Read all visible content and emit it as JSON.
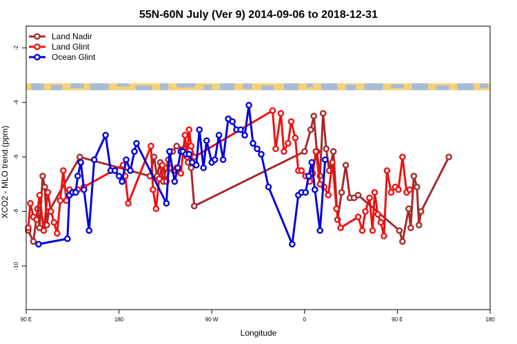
{
  "chart_data": {
    "type": "line",
    "title": "55N-60N July (Ver 9)   2014-09-06 to 2018-12-31",
    "xlabel": "Longitude",
    "ylabel": "XCO2 - MLO trend (ppm)",
    "x_ticks": [
      {
        "value": 90,
        "label": "90 E"
      },
      {
        "value": 180,
        "label": "180"
      },
      {
        "value": 270,
        "label": "90 W"
      },
      {
        "value": 360,
        "label": "0"
      },
      {
        "value": 450,
        "label": "90 E"
      },
      {
        "value": 540,
        "label": "180"
      }
    ],
    "y_ticks": [
      {
        "value": -2,
        "label": "-2"
      },
      {
        "value": -4,
        "label": "-4"
      },
      {
        "value": -6,
        "label": "-6"
      },
      {
        "value": -8,
        "label": "-8"
      },
      {
        "value": -10,
        "label": "-10"
      }
    ],
    "xlim": [
      90,
      540
    ],
    "ylim": [
      -11.6,
      -1.2
    ],
    "grid": false,
    "legend_position": "top-left",
    "land_mask": {
      "y_range": [
        -3.55,
        -3.3
      ],
      "land_color": "#f5d277",
      "ocean_color": "#a9bcd6"
    },
    "series": [
      {
        "name": "Land Nadir",
        "color": "#a52a2a",
        "points": [
          [
            92,
            -8.7
          ],
          [
            97,
            -9.1
          ],
          [
            101,
            -7.9
          ],
          [
            103,
            -8.6
          ],
          [
            106,
            -6.7
          ],
          [
            108,
            -7.1
          ],
          [
            110,
            -8.5
          ],
          [
            112,
            -8.0
          ],
          [
            142,
            -6.0
          ],
          [
            210,
            -6.7
          ],
          [
            214,
            -6.0
          ],
          [
            217,
            -6.7
          ],
          [
            220,
            -6.2
          ],
          [
            223,
            -6.9
          ],
          [
            226,
            -6.4
          ],
          [
            228,
            -6.1
          ],
          [
            232,
            -5.8
          ],
          [
            236,
            -5.6
          ],
          [
            243,
            -5.7
          ],
          [
            247,
            -6.2
          ],
          [
            250,
            -6.4
          ],
          [
            253,
            -7.8
          ],
          [
            360,
            -5.8
          ],
          [
            366,
            -5.0
          ],
          [
            369,
            -4.5
          ],
          [
            372,
            -5.8
          ],
          [
            375,
            -6.7
          ],
          [
            378,
            -4.4
          ],
          [
            381,
            -5.7
          ],
          [
            384,
            -6.5
          ],
          [
            388,
            -5.8
          ],
          [
            392,
            -8.3
          ],
          [
            396,
            -7.3
          ],
          [
            400,
            -6.3
          ],
          [
            404,
            -7.5
          ],
          [
            408,
            -7.5
          ],
          [
            412,
            -7.4
          ],
          [
            452,
            -8.7
          ],
          [
            455,
            -9.1
          ],
          [
            461,
            -7.9
          ],
          [
            463,
            -8.6
          ],
          [
            466,
            -6.7
          ],
          [
            469,
            -7.1
          ],
          [
            471,
            -8.5
          ],
          [
            473,
            -8.0
          ],
          [
            500,
            -6.0
          ]
        ]
      },
      {
        "name": "Land Glint",
        "color": "#ee1111",
        "points": [
          [
            92,
            -8.6
          ],
          [
            94,
            -7.7
          ],
          [
            97,
            -8.2
          ],
          [
            100,
            -8.3
          ],
          [
            103,
            -7.4
          ],
          [
            107,
            -8.7
          ],
          [
            111,
            -7.3
          ],
          [
            114,
            -8.0
          ],
          [
            117,
            -8.4
          ],
          [
            120,
            -8.8
          ],
          [
            123,
            -7.6
          ],
          [
            126,
            -6.5
          ],
          [
            129,
            -7.6
          ],
          [
            132,
            -7.2
          ],
          [
            136,
            -7.3
          ],
          [
            140,
            -7.2
          ],
          [
            146,
            -7.1
          ],
          [
            184,
            -6.3
          ],
          [
            186,
            -6.7
          ],
          [
            189,
            -7.7
          ],
          [
            211,
            -5.6
          ],
          [
            213,
            -7.2
          ],
          [
            216,
            -7.9
          ],
          [
            219,
            -6.8
          ],
          [
            222,
            -6.3
          ],
          [
            226,
            -6.9
          ],
          [
            229,
            -6.4
          ],
          [
            233,
            -6.5
          ],
          [
            236,
            -6.4
          ],
          [
            240,
            -6.6
          ],
          [
            244,
            -5.2
          ],
          [
            246,
            -6.0
          ],
          [
            248,
            -5.0
          ],
          [
            250,
            -5.6
          ],
          [
            253,
            -6.0
          ],
          [
            329,
            -4.3
          ],
          [
            332,
            -5.7
          ],
          [
            337,
            -4.4
          ],
          [
            340,
            -5.8
          ],
          [
            344,
            -5.5
          ],
          [
            347,
            -4.7
          ],
          [
            351,
            -5.3
          ],
          [
            354,
            -6.5
          ],
          [
            357,
            -6.5
          ],
          [
            361,
            -6.7
          ],
          [
            365,
            -6.9
          ],
          [
            368,
            -6.6
          ],
          [
            371,
            -5.8
          ],
          [
            375,
            -7.0
          ],
          [
            379,
            -7.1
          ],
          [
            383,
            -7.4
          ],
          [
            387,
            -6.2
          ],
          [
            391,
            -7.9
          ],
          [
            395,
            -8.6
          ],
          [
            412,
            -8.2
          ],
          [
            416,
            -8.7
          ],
          [
            419,
            -8.0
          ],
          [
            423,
            -7.5
          ],
          [
            426,
            -8.7
          ],
          [
            428,
            -7.3
          ],
          [
            431,
            -8.1
          ],
          [
            434,
            -8.4
          ],
          [
            437,
            -8.9
          ],
          [
            440,
            -6.5
          ],
          [
            444,
            -7.3
          ],
          [
            448,
            -7.1
          ],
          [
            451,
            -7.2
          ],
          [
            455,
            -6.0
          ],
          [
            459,
            -7.3
          ],
          [
            462,
            -7.2
          ]
        ]
      },
      {
        "name": "Ocean Glint",
        "color": "#0000dd",
        "points": [
          [
            102,
            -9.2
          ],
          [
            130,
            -9.0
          ],
          [
            132,
            -7.4
          ],
          [
            135,
            -7.3
          ],
          [
            138,
            -7.3
          ],
          [
            140,
            -6.7
          ],
          [
            143,
            -6.2
          ],
          [
            146,
            -7.2
          ],
          [
            151,
            -8.7
          ],
          [
            156,
            -6.1
          ],
          [
            167,
            -5.2
          ],
          [
            172,
            -6.5
          ],
          [
            176,
            -6.5
          ],
          [
            180,
            -6.7
          ],
          [
            183,
            -6.9
          ],
          [
            187,
            -6.1
          ],
          [
            191,
            -6.5
          ],
          [
            195,
            -5.8
          ],
          [
            197,
            -5.5
          ],
          [
            226,
            -7.7
          ],
          [
            229,
            -5.8
          ],
          [
            234,
            -6.9
          ],
          [
            237,
            -6.4
          ],
          [
            240,
            -5.8
          ],
          [
            242,
            -5.8
          ],
          [
            245,
            -5.9
          ],
          [
            248,
            -5.9
          ],
          [
            251,
            -6.2
          ],
          [
            255,
            -6.3
          ],
          [
            258,
            -5.0
          ],
          [
            262,
            -6.4
          ],
          [
            265,
            -5.4
          ],
          [
            270,
            -6.2
          ],
          [
            273,
            -6.1
          ],
          [
            277,
            -5.2
          ],
          [
            281,
            -6.1
          ],
          [
            286,
            -4.6
          ],
          [
            290,
            -4.7
          ],
          [
            294,
            -5.0
          ],
          [
            298,
            -5.0
          ],
          [
            302,
            -5.2
          ],
          [
            306,
            -4.1
          ],
          [
            310,
            -5.5
          ],
          [
            314,
            -5.7
          ],
          [
            318,
            -5.9
          ],
          [
            325,
            -7.1
          ],
          [
            348,
            -9.2
          ],
          [
            354,
            -7.4
          ],
          [
            357,
            -7.3
          ],
          [
            361,
            -7.3
          ],
          [
            364,
            -6.7
          ],
          [
            367,
            -6.2
          ],
          [
            370,
            -7.2
          ],
          [
            375,
            -8.7
          ],
          [
            380,
            -6.1
          ]
        ]
      }
    ]
  }
}
